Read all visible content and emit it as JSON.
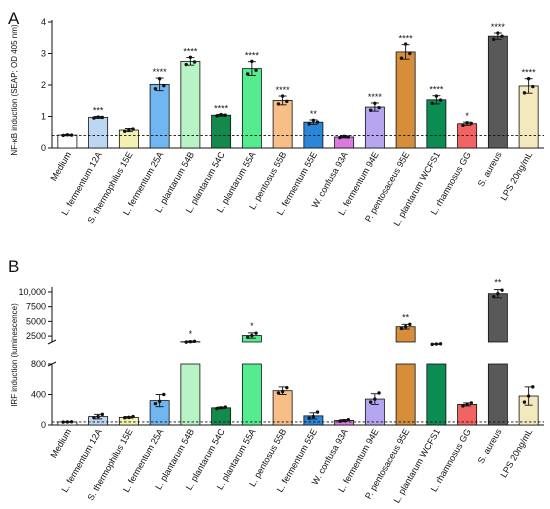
{
  "chart_data": [
    {
      "type": "bar",
      "panel": "A",
      "ylabel": "NF-κB induction (SEAP; OD 405 nm)",
      "ylim": [
        0,
        4
      ],
      "yticks": [
        0,
        1,
        2,
        3,
        4
      ],
      "grid": false,
      "reference_line": 0.4,
      "categories": [
        "Medium",
        "L. fermentum 12A",
        "S. thermophilus 15E",
        "L. fermentum 25A",
        "L. plantarum 54B",
        "L. plantarum 54C",
        "L. plantarum 55A",
        "L. pentosus 55B",
        "L. fermentum 55E",
        "W. confusa 93A",
        "L. fermentum 94E",
        "P. pentosaceus 95E",
        "L. plantarum WCFS1",
        "L. rhamnosus GG",
        "S. aureus",
        "LPS 20ng/mL"
      ],
      "values": [
        0.41,
        0.97,
        0.57,
        2.02,
        2.75,
        1.04,
        2.52,
        1.51,
        0.82,
        0.35,
        1.3,
        3.05,
        1.53,
        0.77,
        3.55,
        1.97
      ],
      "errors": [
        0.02,
        0.03,
        0.05,
        0.2,
        0.12,
        0.03,
        0.22,
        0.14,
        0.07,
        0.03,
        0.13,
        0.23,
        0.13,
        0.05,
        0.1,
        0.23
      ],
      "points": [
        [
          0.4,
          0.42,
          0.41
        ],
        [
          0.95,
          0.98,
          0.97
        ],
        [
          0.53,
          0.57,
          0.6
        ],
        [
          1.88,
          2.2,
          1.98
        ],
        [
          2.65,
          2.88,
          2.73
        ],
        [
          1.02,
          1.06,
          1.04
        ],
        [
          2.35,
          2.75,
          2.47
        ],
        [
          1.4,
          1.65,
          1.48
        ],
        [
          0.76,
          0.88,
          0.82
        ],
        [
          0.33,
          0.37,
          0.35
        ],
        [
          1.2,
          1.42,
          1.28
        ],
        [
          2.85,
          3.3,
          3.0
        ],
        [
          1.42,
          1.65,
          1.52
        ],
        [
          0.72,
          0.8,
          0.78
        ],
        [
          3.45,
          3.65,
          3.55
        ],
        [
          1.75,
          2.2,
          1.95
        ]
      ],
      "significance": [
        "",
        "***",
        "",
        "****",
        "****",
        "****",
        "****",
        "****",
        "**",
        "",
        "****",
        "****",
        "****",
        "*",
        "****",
        "****"
      ],
      "colors": [
        "#ffffff",
        "#bcd7f1",
        "#f2f1b3",
        "#70b6f1",
        "#b7f3c4",
        "#138a4b",
        "#55ec8f",
        "#f7bf87",
        "#2c86d8",
        "#d97ae0",
        "#b5a6ef",
        "#d68e3b",
        "#0b8c52",
        "#f26464",
        "#595959",
        "#f2e9bd"
      ]
    },
    {
      "type": "bar",
      "panel": "B",
      "ylabel": "IRF induction (luminescence)",
      "yaxis_break": [
        800,
        1500
      ],
      "yticks_lower": [
        0,
        400,
        800
      ],
      "yticks_upper": [
        2500,
        5000,
        7500,
        10000
      ],
      "ytick_labels_upper": [
        "2500",
        "5000",
        "7500",
        "10,000"
      ],
      "grid": false,
      "reference_line": 40,
      "categories": [
        "Medium",
        "L. fermentum 12A",
        "S. thermophilus 15E",
        "L. fermentum 25A",
        "L. plantarum 54B",
        "L. plantarum 54C",
        "L. plantarum 55A",
        "L. pentosus 55B",
        "L. fermentum 55E",
        "W. confusa 93A",
        "L. fermentum 94E",
        "P. pentosaceus 95E",
        "L. plantarum WCFS1",
        "L. rhamnosus GG",
        "S. aureus",
        "LPS 20ng/mL"
      ],
      "values": [
        40,
        110,
        100,
        320,
        1550,
        225,
        2600,
        450,
        120,
        60,
        340,
        4100,
        1150,
        270,
        9700,
        380
      ],
      "errors": [
        5,
        30,
        10,
        80,
        100,
        10,
        450,
        50,
        40,
        10,
        70,
        400,
        50,
        20,
        700,
        120
      ],
      "points": [
        [
          38,
          40,
          42
        ],
        [
          95,
          110,
          140
        ],
        [
          95,
          100,
          110
        ],
        [
          280,
          310,
          400
        ],
        [
          1480,
          1550,
          1620
        ],
        [
          215,
          225,
          235
        ],
        [
          2300,
          2600,
          3000
        ],
        [
          420,
          440,
          490
        ],
        [
          90,
          110,
          170
        ],
        [
          50,
          58,
          70
        ],
        [
          300,
          340,
          420
        ],
        [
          3800,
          4100,
          4500
        ],
        [
          1100,
          1150,
          1200
        ],
        [
          250,
          270,
          290
        ],
        [
          9200,
          9700,
          10300
        ],
        [
          300,
          380,
          500
        ]
      ],
      "significance": [
        "",
        "",
        "",
        "",
        "*",
        "",
        "*",
        "",
        "",
        "",
        "",
        "**",
        "",
        "",
        "**",
        ""
      ],
      "colors": [
        "#ffffff",
        "#bcd7f1",
        "#f2f1b3",
        "#70b6f1",
        "#b7f3c4",
        "#138a4b",
        "#55ec8f",
        "#f7bf87",
        "#2c86d8",
        "#d97ae0",
        "#b5a6ef",
        "#d68e3b",
        "#0b8c52",
        "#f26464",
        "#595959",
        "#f2e9bd"
      ]
    }
  ]
}
